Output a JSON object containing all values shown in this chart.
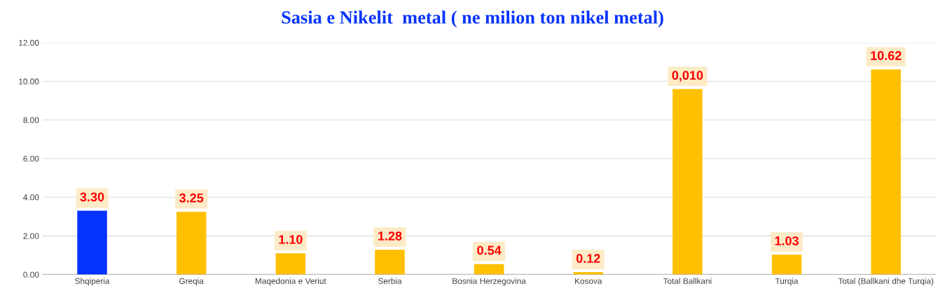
{
  "chart_data": {
    "type": "bar",
    "title": "Sasia e Nikelit  metal ( ne milion ton nikel metal)",
    "categories": [
      "Shqiperia",
      "Greqia",
      "Maqedonia e Veriut",
      "Serbia",
      "Bosnia Herzegovina",
      "Kosova",
      "Total Ballkani",
      "Turqia",
      "Total (Ballkani dhe Turqia)"
    ],
    "values": [
      3.3,
      3.25,
      1.1,
      1.28,
      0.54,
      0.12,
      9.6,
      1.03,
      10.62
    ],
    "colors": [
      "#0433ff",
      "#ffc000",
      "#ffc000",
      "#ffc000",
      "#ffc000",
      "#ffc000",
      "#ffc000",
      "#ffc000",
      "#ffc000"
    ],
    "value_labels": [
      "3.30",
      "3.25",
      "1.10",
      "1.28",
      "0.54",
      "0.12",
      null,
      "1.03",
      "10.62"
    ],
    "annotations": [
      {
        "text": "0,010",
        "x": "Total Ballkani",
        "y": 9.6
      }
    ],
    "ylim": [
      0,
      12
    ],
    "yticks": [
      {
        "value": 0,
        "label": "0.00"
      },
      {
        "value": 2,
        "label": "2.00"
      },
      {
        "value": 4,
        "label": "4.00"
      },
      {
        "value": 6,
        "label": "6.00"
      },
      {
        "value": 8,
        "label": "8.00"
      },
      {
        "value": 10,
        "label": "10.00"
      },
      {
        "value": 12,
        "label": "12.00"
      }
    ],
    "grid": "y",
    "legend": false
  }
}
